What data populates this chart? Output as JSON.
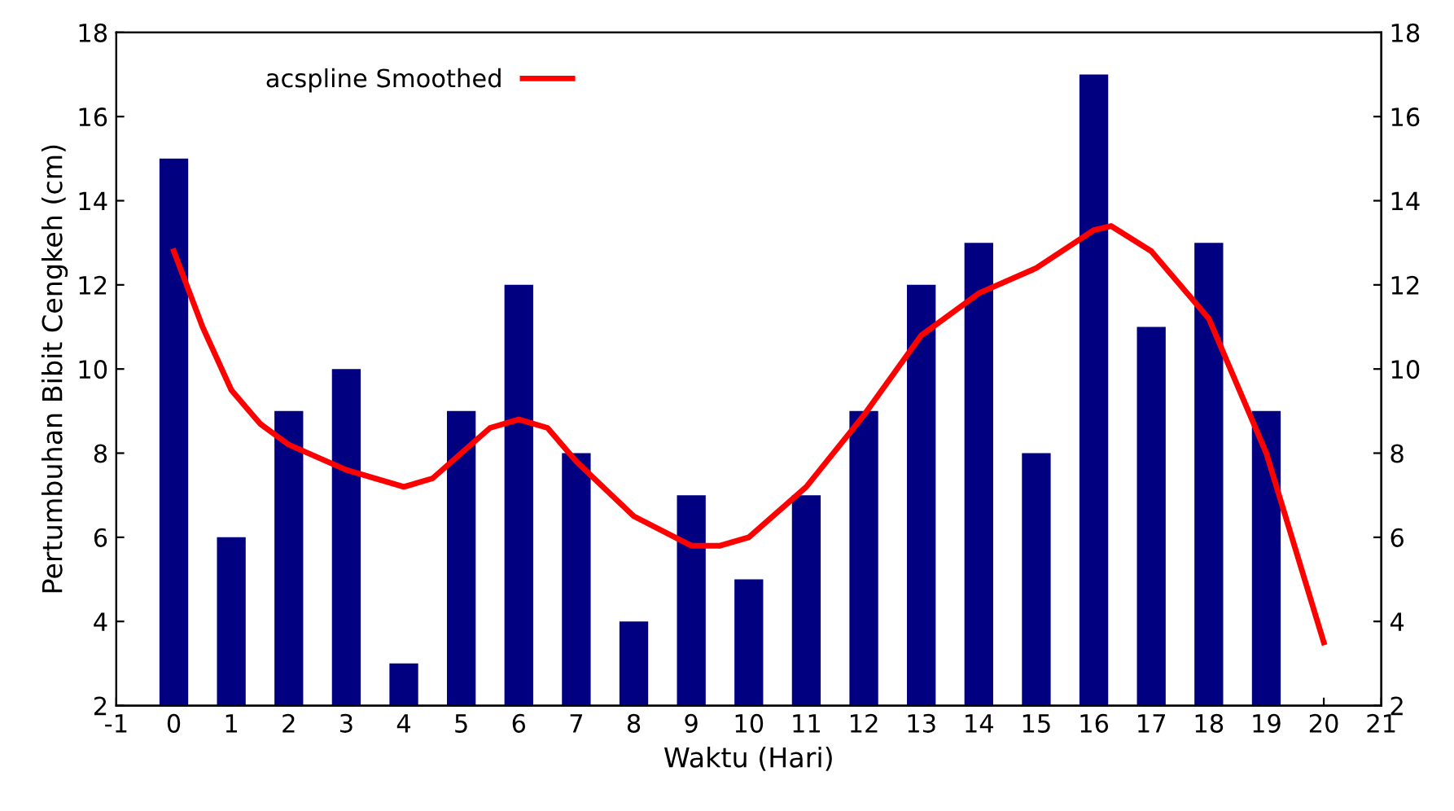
{
  "chart_data": {
    "type": "bar",
    "xlabel": "Waktu (Hari)",
    "ylabel": "Pertumbuhan Bibit Cengkeh (cm)",
    "xlim": [
      -1,
      21
    ],
    "xticks": [
      -1,
      0,
      1,
      2,
      3,
      4,
      5,
      6,
      7,
      8,
      9,
      10,
      11,
      12,
      13,
      14,
      15,
      16,
      17,
      18,
      19,
      20,
      21
    ],
    "ylim": [
      2,
      18
    ],
    "yticks": [
      2,
      4,
      6,
      8,
      10,
      12,
      14,
      16,
      18
    ],
    "y2lim": [
      2,
      18
    ],
    "y2ticks": [
      2,
      4,
      6,
      8,
      10,
      12,
      14,
      16,
      18
    ],
    "grid": false,
    "legend": "top left",
    "series": [
      {
        "color": "#000080",
        "x": [
          0,
          1,
          2,
          3,
          4,
          5,
          6,
          7,
          8,
          9,
          10,
          11,
          12,
          13,
          14,
          15,
          16,
          17,
          18,
          19
        ],
        "values": [
          15,
          6,
          9,
          10,
          3,
          9,
          12,
          8,
          4,
          7,
          5,
          7,
          9,
          12,
          13,
          8,
          17,
          11,
          13,
          9
        ]
      },
      {
        "type": "line",
        "name": "acspline Smoothed",
        "color": "#ff0000",
        "line_style": "solid",
        "x": [
          0,
          0.5,
          1,
          1.5,
          2,
          3,
          4,
          4.5,
          5,
          5.5,
          6,
          6.5,
          7,
          8,
          9,
          9.5,
          10,
          11,
          12,
          13,
          14,
          15,
          16,
          16.3,
          17,
          18,
          19,
          20
        ],
        "values": [
          12.8,
          11,
          9.5,
          8.7,
          8.2,
          7.6,
          7.2,
          7.4,
          8.0,
          8.6,
          8.8,
          8.6,
          7.8,
          6.5,
          5.8,
          5.8,
          6.0,
          7.2,
          8.9,
          10.8,
          11.8,
          12.4,
          13.3,
          13.4,
          12.8,
          11.2,
          8.0,
          3.5
        ]
      }
    ]
  }
}
